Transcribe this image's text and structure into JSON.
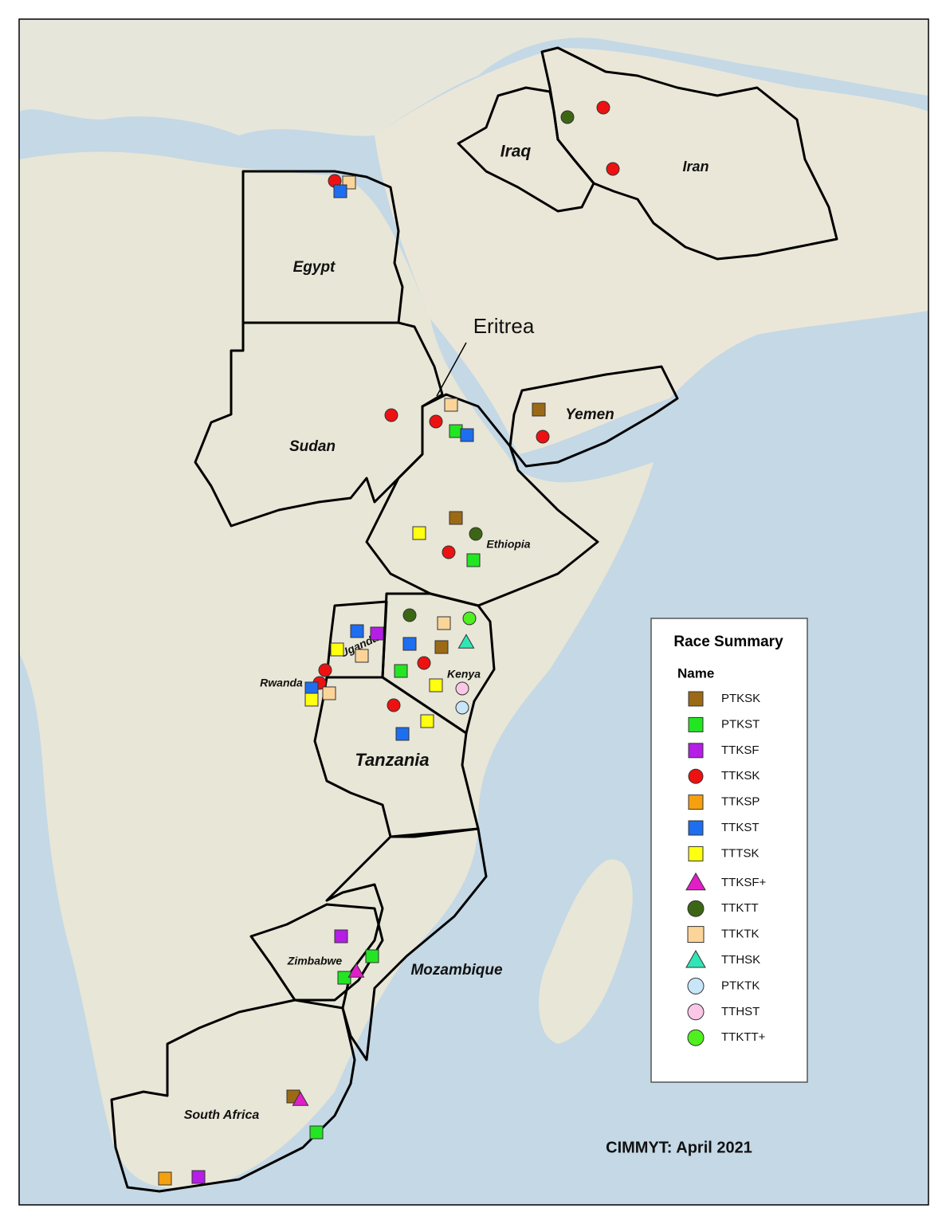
{
  "map": {
    "country_labels": [
      "Iraq",
      "Iran",
      "Egypt",
      "Eritrea",
      "Yemen",
      "Sudan",
      "Ethiopia",
      "Uganda",
      "Kenya",
      "Rwanda",
      "Tanzania",
      "Zimbabwe",
      "Mozambique",
      "South Africa"
    ]
  },
  "legend": {
    "title": "Race Summary",
    "header": "Name",
    "items": [
      "PTKSK",
      "PTKST",
      "TTKSF",
      "TTKSK",
      "TTKSP",
      "TTKST",
      "TTTSK",
      "TTKSF+",
      "TTKTT",
      "TTKTK",
      "TTHSK",
      "PTKTK",
      "TTHST",
      "TTKTT+"
    ]
  },
  "credit": "CIMMYT: April 2021"
}
